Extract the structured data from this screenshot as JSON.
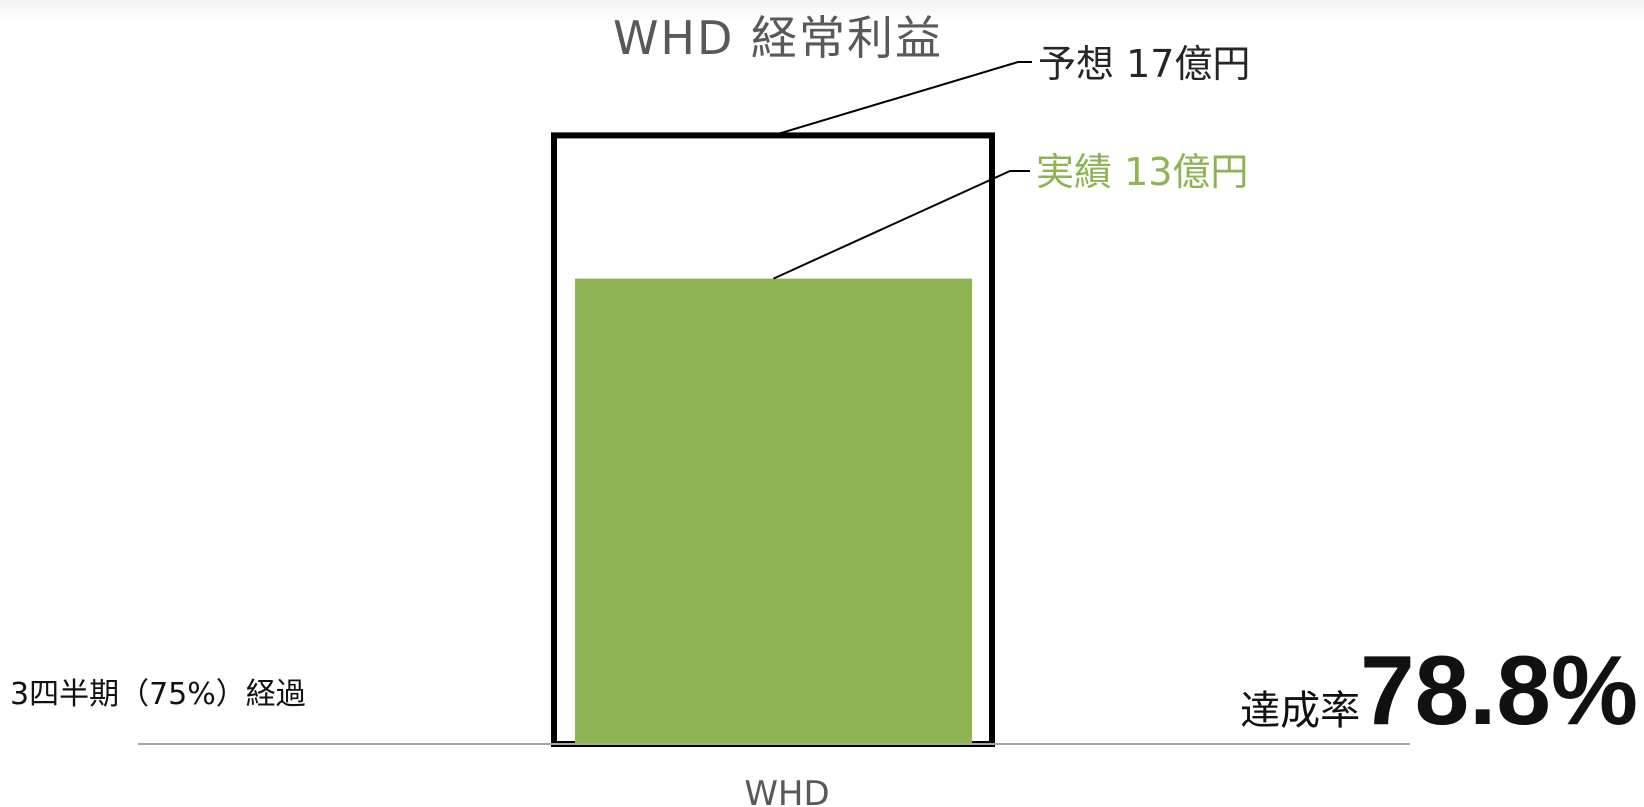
{
  "chart_data": {
    "type": "bar",
    "title": "WHD 経常利益",
    "categories": [
      "WHD"
    ],
    "series": [
      {
        "name": "予想",
        "values": [
          17
        ],
        "style": "outline"
      },
      {
        "name": "実績",
        "values": [
          13
        ],
        "style": "filled"
      }
    ],
    "data_labels": {
      "forecast": "予想 17億円",
      "actual": "実績 13億円"
    },
    "annotations": {
      "elapsed": "3四半期（75%）経過",
      "achievement_prefix": "達成率",
      "achievement_value": "78.8%"
    },
    "grid": false,
    "legend": "none"
  },
  "colors": {
    "actual": "#8db352",
    "forecast_outline": "#000000",
    "title": "#595959",
    "baseline": "#a6a6a6"
  }
}
